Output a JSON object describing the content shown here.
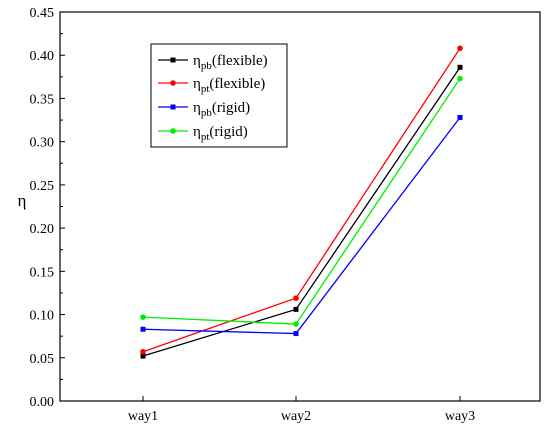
{
  "chart_data": {
    "type": "line",
    "title": "",
    "xlabel": "",
    "ylabel": "η",
    "categories": [
      "way1",
      "way2",
      "way3"
    ],
    "ylim": [
      0.0,
      0.45
    ],
    "yticks": [
      "0.00",
      "0.05",
      "0.10",
      "0.15",
      "0.20",
      "0.25",
      "0.30",
      "0.35",
      "0.40",
      "0.45"
    ],
    "grid": false,
    "legend_position": "upper-left",
    "series": [
      {
        "name_main": "η",
        "name_sub": "pb",
        "name_suffix": "(flexible)",
        "color": "#000000",
        "marker": "square",
        "values": [
          0.052,
          0.106,
          0.386
        ]
      },
      {
        "name_main": "η",
        "name_sub": "pt",
        "name_suffix": "(flexible)",
        "color": "#ff0000",
        "marker": "circle",
        "values": [
          0.057,
          0.119,
          0.408
        ]
      },
      {
        "name_main": "η",
        "name_sub": "pb",
        "name_suffix": "(rigid)",
        "color": "#0000ff",
        "marker": "square",
        "values": [
          0.083,
          0.078,
          0.328
        ]
      },
      {
        "name_main": "η",
        "name_sub": "pt",
        "name_suffix": "(rigid)",
        "color": "#00ee00",
        "marker": "circle",
        "values": [
          0.097,
          0.089,
          0.373
        ]
      }
    ]
  }
}
